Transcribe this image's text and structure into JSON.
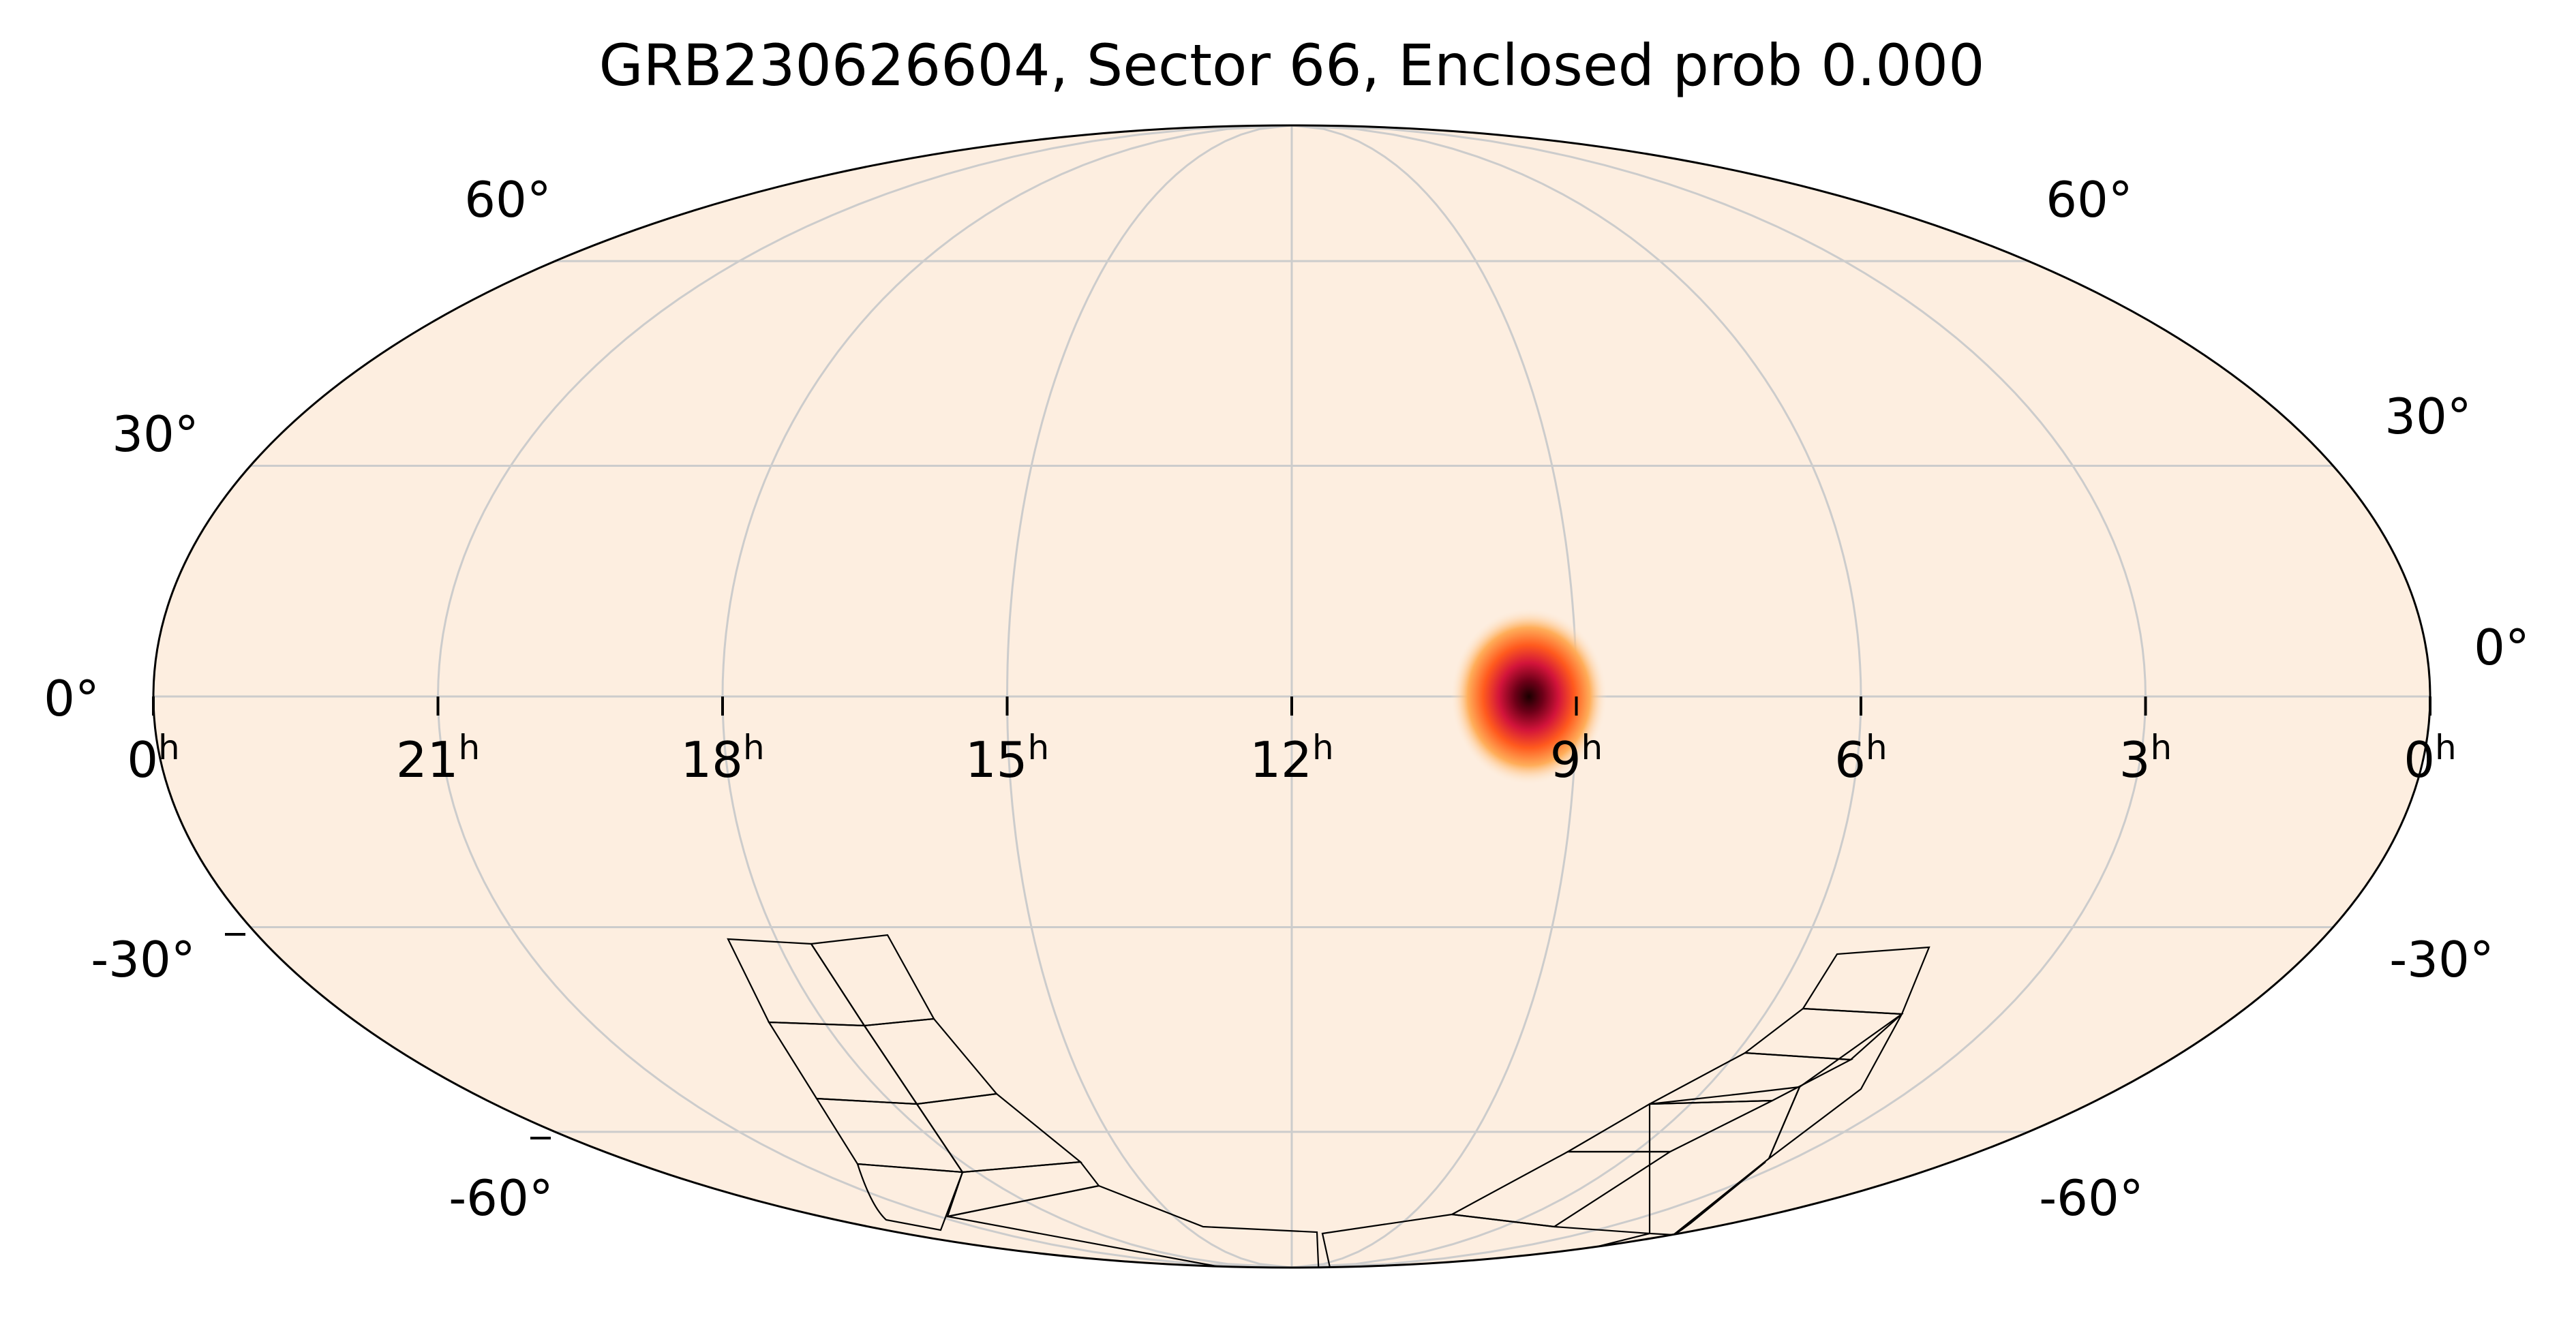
{
  "title": "GRB230626604, Sector 66, Enclosed prob 0.000",
  "projection": "mollweide",
  "colors": {
    "background": "#fdeee0",
    "grid": "#cccccc",
    "outline": "#000000",
    "colormap": "hot"
  },
  "grid": {
    "dec_labels_left": [
      "60°",
      "30°",
      "0°",
      "-30°",
      "-60°"
    ],
    "dec_labels_right": [
      "60°",
      "30°",
      "0°",
      "-30°",
      "-60°"
    ],
    "ra_labels": [
      {
        "hour": "0",
        "sup": "h"
      },
      {
        "hour": "21",
        "sup": "h"
      },
      {
        "hour": "18",
        "sup": "h"
      },
      {
        "hour": "15",
        "sup": "h"
      },
      {
        "hour": "12",
        "sup": "h"
      },
      {
        "hour": "9",
        "sup": "h"
      },
      {
        "hour": "6",
        "sup": "h"
      },
      {
        "hour": "3",
        "sup": "h"
      },
      {
        "hour": "0",
        "sup": "h"
      }
    ]
  },
  "localization": {
    "ra_hours": 9.5,
    "dec_deg": 0.0,
    "peak_color": "#1a0000",
    "enclosed_probability": 0.0
  },
  "sector": {
    "number": 66,
    "outline_color": "#000000"
  }
}
